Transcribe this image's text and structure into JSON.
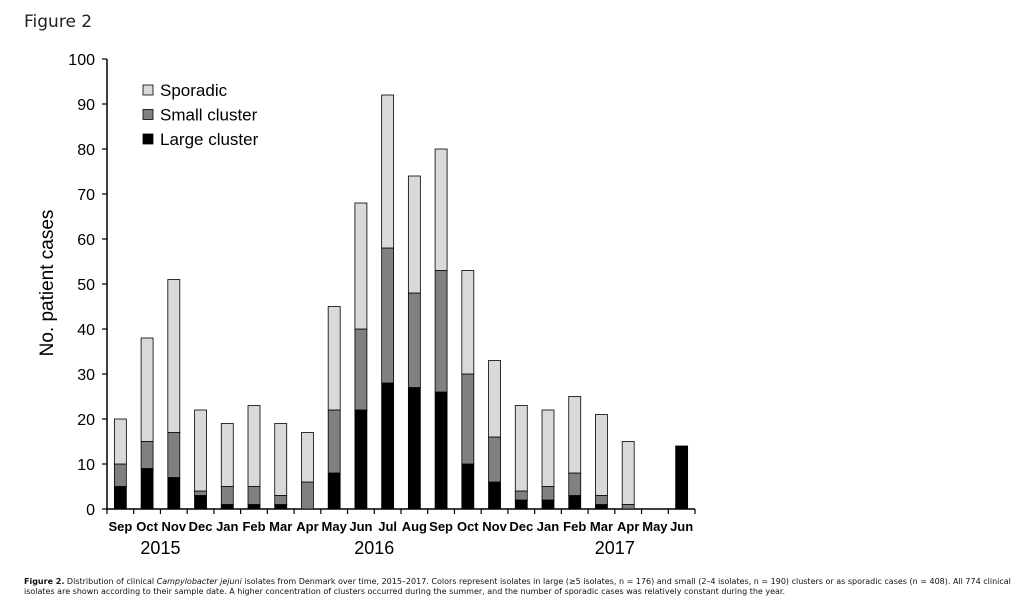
{
  "figure_label": "Figure 2",
  "caption": {
    "label": "Figure 2.",
    "text_before_species": " Distribution of clinical ",
    "species": "Campylobacter jejuni",
    "text_after_species": " isolates from Denmark over time, 2015–2017. Colors represent isolates in large (≥5 isolates, n = 176) and small (2–4 isolates, n = 190) clusters or as sporadic cases (n = 408). All 774 clinical isolates are shown according to their sample date. A higher concentration of clusters occurred during the summer, and the number of sporadic cases was relatively constant during the year."
  },
  "chart_data": {
    "type": "bar",
    "stacked": true,
    "title": "",
    "xlabel": "",
    "ylabel": "No. patient cases",
    "ylim": [
      0,
      100
    ],
    "yticks": [
      0,
      10,
      20,
      30,
      40,
      50,
      60,
      70,
      80,
      90,
      100
    ],
    "categories": [
      "Sep",
      "Oct",
      "Nov",
      "Dec",
      "Jan",
      "Feb",
      "Mar",
      "Apr",
      "May",
      "Jun",
      "Jul",
      "Aug",
      "Sep",
      "Oct",
      "Nov",
      "Dec",
      "Jan",
      "Feb",
      "Mar",
      "Apr",
      "May",
      "Jun"
    ],
    "year_labels": [
      {
        "label": "2015",
        "category_index": 1.5
      },
      {
        "label": "2016",
        "category_index": 9.5
      },
      {
        "label": "2017",
        "category_index": 18.5
      }
    ],
    "legend_position": "top-left",
    "grid": false,
    "series": [
      {
        "name": "Large cluster",
        "color": "#000000",
        "values": [
          5,
          9,
          7,
          3,
          1,
          1,
          1,
          0,
          8,
          22,
          28,
          27,
          26,
          10,
          6,
          2,
          2,
          3,
          1,
          0,
          0,
          14
        ]
      },
      {
        "name": "Small cluster",
        "color": "#808080",
        "values": [
          5,
          6,
          10,
          1,
          4,
          4,
          2,
          6,
          14,
          18,
          30,
          21,
          27,
          20,
          10,
          2,
          3,
          5,
          2,
          1,
          0,
          0
        ]
      },
      {
        "name": "Sporadic",
        "color": "#d9d9d9",
        "values": [
          10,
          23,
          34,
          18,
          14,
          18,
          16,
          11,
          23,
          28,
          34,
          26,
          27,
          23,
          17,
          19,
          17,
          17,
          18,
          14,
          0,
          0
        ]
      }
    ],
    "legend_order": [
      "Sporadic",
      "Small cluster",
      "Large cluster"
    ]
  }
}
